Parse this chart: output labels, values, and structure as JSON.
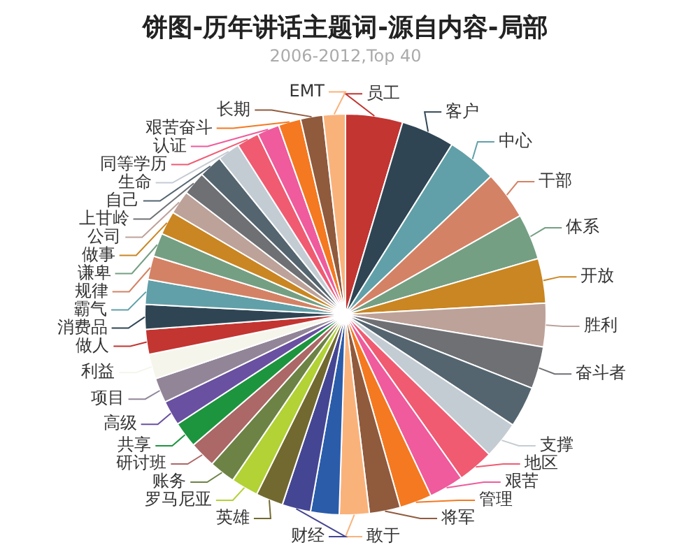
{
  "chart_data": {
    "type": "pie",
    "title": "饼图-历年讲话主题词-源自内容-局部",
    "subtitle": "2006-2012,Top 40",
    "legend": false,
    "categories": [
      "员工",
      "客户",
      "中心",
      "干部",
      "体系",
      "开放",
      "胜利",
      "奋斗者",
      null,
      "支撑",
      "地区",
      "艰苦",
      "管理",
      "将军",
      "敢于",
      null,
      "财经",
      "英雄",
      "罗马尼亚",
      "账务",
      "研讨班",
      "共享",
      "高级",
      "项目",
      "利益",
      "做人",
      "消费品",
      "霸气",
      "规律",
      "谦卑",
      "做事",
      "公司",
      "上甘岭",
      "自己",
      "生命",
      "同等学历",
      "认证",
      "艰苦奋斗",
      "长期",
      "EMT"
    ],
    "values": [
      4.6,
      4.3,
      4.0,
      3.9,
      3.7,
      3.6,
      3.5,
      3.4,
      3.3,
      3.0,
      2.9,
      2.8,
      2.6,
      2.5,
      2.4,
      2.3,
      2.3,
      2.2,
      2.2,
      2.1,
      2.1,
      2.1,
      2.0,
      2.0,
      2.0,
      2.0,
      2.0,
      2.0,
      1.9,
      1.9,
      1.9,
      1.9,
      1.9,
      1.9,
      1.8,
      1.8,
      1.8,
      1.8,
      1.8,
      1.8
    ],
    "colors": [
      "#c23531",
      "#2f4554",
      "#61a0a8",
      "#d48265",
      "#749f83",
      "#ca8622",
      "#bda29a",
      "#6e7074",
      "#546570",
      "#c4ccd3",
      "#f05b72",
      "#ef5b9c",
      "#f47920",
      "#905a3d",
      "#fab27b",
      "#2a5caa",
      "#444693",
      "#726930",
      "#b2d235",
      "#6d8346",
      "#ac6767",
      "#1d953f",
      "#6950a1",
      "#918597",
      "#f6f5ec",
      "#c23531",
      "#2f4554",
      "#61a0a8",
      "#d48265",
      "#749f83",
      "#ca8622",
      "#bda29a",
      "#6e7074",
      "#546570",
      "#c4ccd3",
      "#f05b72",
      "#ef5b9c",
      "#f47920",
      "#905a3d",
      "#fab27b"
    ]
  }
}
